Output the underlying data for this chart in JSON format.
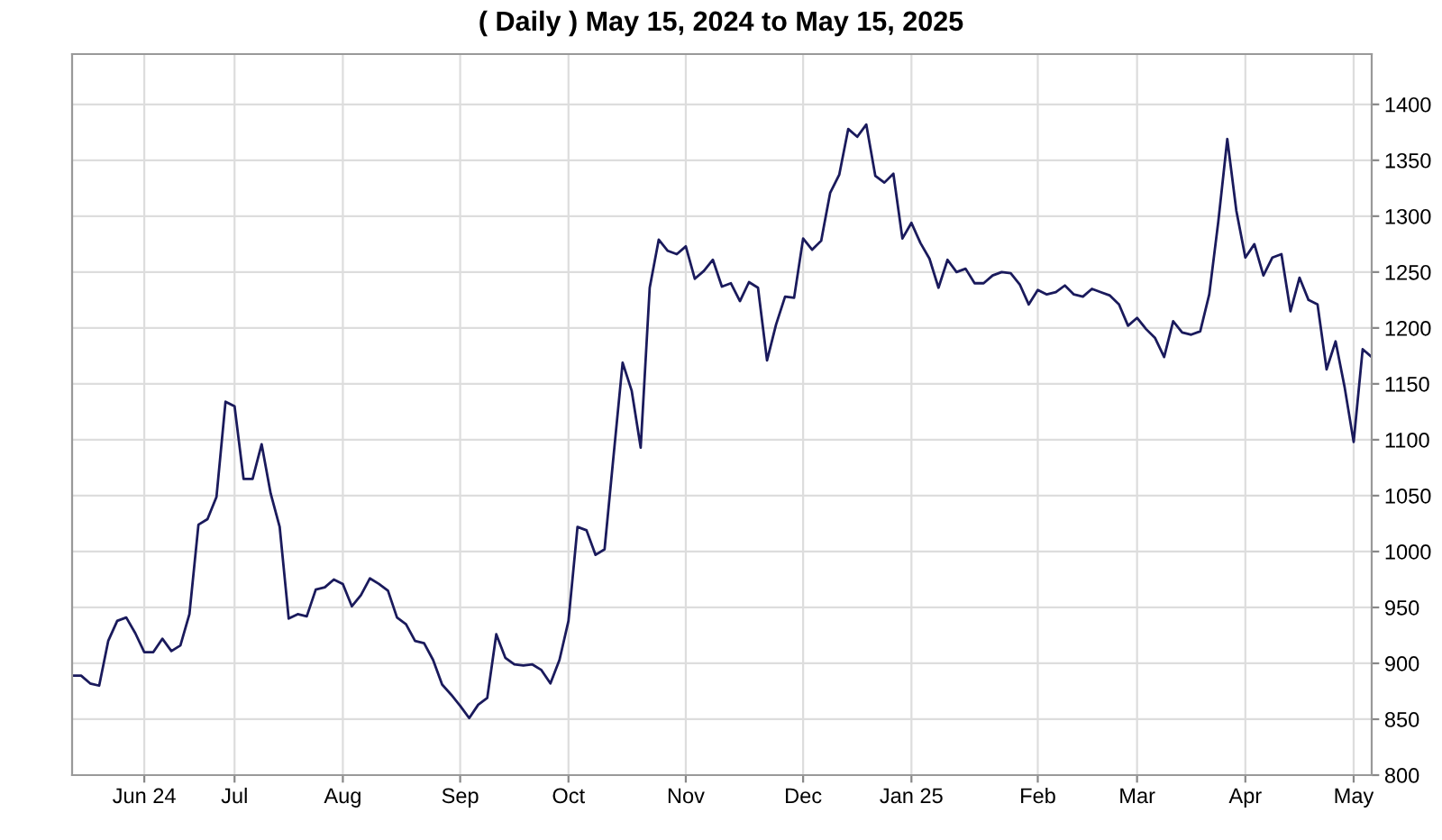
{
  "chart_data": {
    "type": "line",
    "title": "( Daily ) May 15, 2024 to May 15, 2025",
    "categories": [
      null,
      null,
      null,
      null,
      null,
      null,
      null,
      null,
      "Jun 24",
      null,
      null,
      null,
      null,
      null,
      null,
      null,
      null,
      null,
      "Jul",
      null,
      null,
      null,
      null,
      null,
      null,
      null,
      null,
      null,
      null,
      null,
      "Aug",
      null,
      null,
      null,
      null,
      null,
      null,
      null,
      null,
      null,
      null,
      null,
      null,
      "Sep",
      null,
      null,
      null,
      null,
      null,
      null,
      null,
      null,
      null,
      null,
      null,
      "Oct",
      null,
      null,
      null,
      null,
      null,
      null,
      null,
      null,
      null,
      null,
      null,
      null,
      "Nov",
      null,
      null,
      null,
      null,
      null,
      null,
      null,
      null,
      null,
      null,
      null,
      null,
      "Dec",
      null,
      null,
      null,
      null,
      null,
      null,
      null,
      null,
      null,
      null,
      null,
      "Jan 25",
      null,
      null,
      null,
      null,
      null,
      null,
      null,
      null,
      null,
      null,
      null,
      null,
      null,
      "Feb",
      null,
      null,
      null,
      null,
      null,
      null,
      null,
      null,
      null,
      null,
      "Mar",
      null,
      null,
      null,
      null,
      null,
      null,
      null,
      null,
      null,
      null,
      null,
      "Apr",
      null,
      null,
      null,
      null,
      null,
      null,
      null,
      null,
      null,
      null,
      null,
      "May",
      null,
      null
    ],
    "series": [
      {
        "color": "#1a1a5c",
        "values": [
          889,
          889,
          882,
          880,
          920,
          938,
          941,
          927,
          910,
          910,
          922,
          911,
          916,
          944,
          1024,
          1029,
          1049,
          1134,
          1130,
          1065,
          1065,
          1096,
          1052,
          1022,
          940,
          944,
          942,
          966,
          968,
          975,
          971,
          951,
          961,
          976,
          971,
          965,
          941,
          935,
          920,
          918,
          903,
          881,
          872,
          862,
          851,
          863,
          869,
          926,
          905,
          899,
          898,
          899,
          894,
          882,
          903,
          938,
          1022,
          1019,
          997,
          1002,
          1086,
          1169,
          1144,
          1093,
          1236,
          1279,
          1269,
          1266,
          1273,
          1244,
          1251,
          1261,
          1237,
          1240,
          1224,
          1241,
          1236,
          1171,
          1203,
          1228,
          1227,
          1280,
          1270,
          1278,
          1321,
          1337,
          1378,
          1371,
          1382,
          1336,
          1330,
          1338,
          1280,
          1294,
          1276,
          1262,
          1236,
          1261,
          1250,
          1253,
          1240,
          1240,
          1247,
          1250,
          1249,
          1239,
          1221,
          1234,
          1230,
          1232,
          1238,
          1230,
          1228,
          1235,
          1232,
          1229,
          1221,
          1202,
          1209,
          1199,
          1191,
          1174,
          1206,
          1196,
          1194,
          1197,
          1230,
          1295,
          1369,
          1305,
          1263,
          1275,
          1247,
          1263,
          1266,
          1215,
          1245,
          1225,
          1221,
          1163,
          1188,
          1147,
          1098,
          1181,
          1174
        ]
      }
    ],
    "ylim": [
      800,
      1445
    ],
    "yticks": [
      800,
      850,
      900,
      950,
      1000,
      1050,
      1100,
      1150,
      1200,
      1250,
      1300,
      1350,
      1400
    ],
    "grid": true,
    "line_style": "solid",
    "marker": "none"
  }
}
